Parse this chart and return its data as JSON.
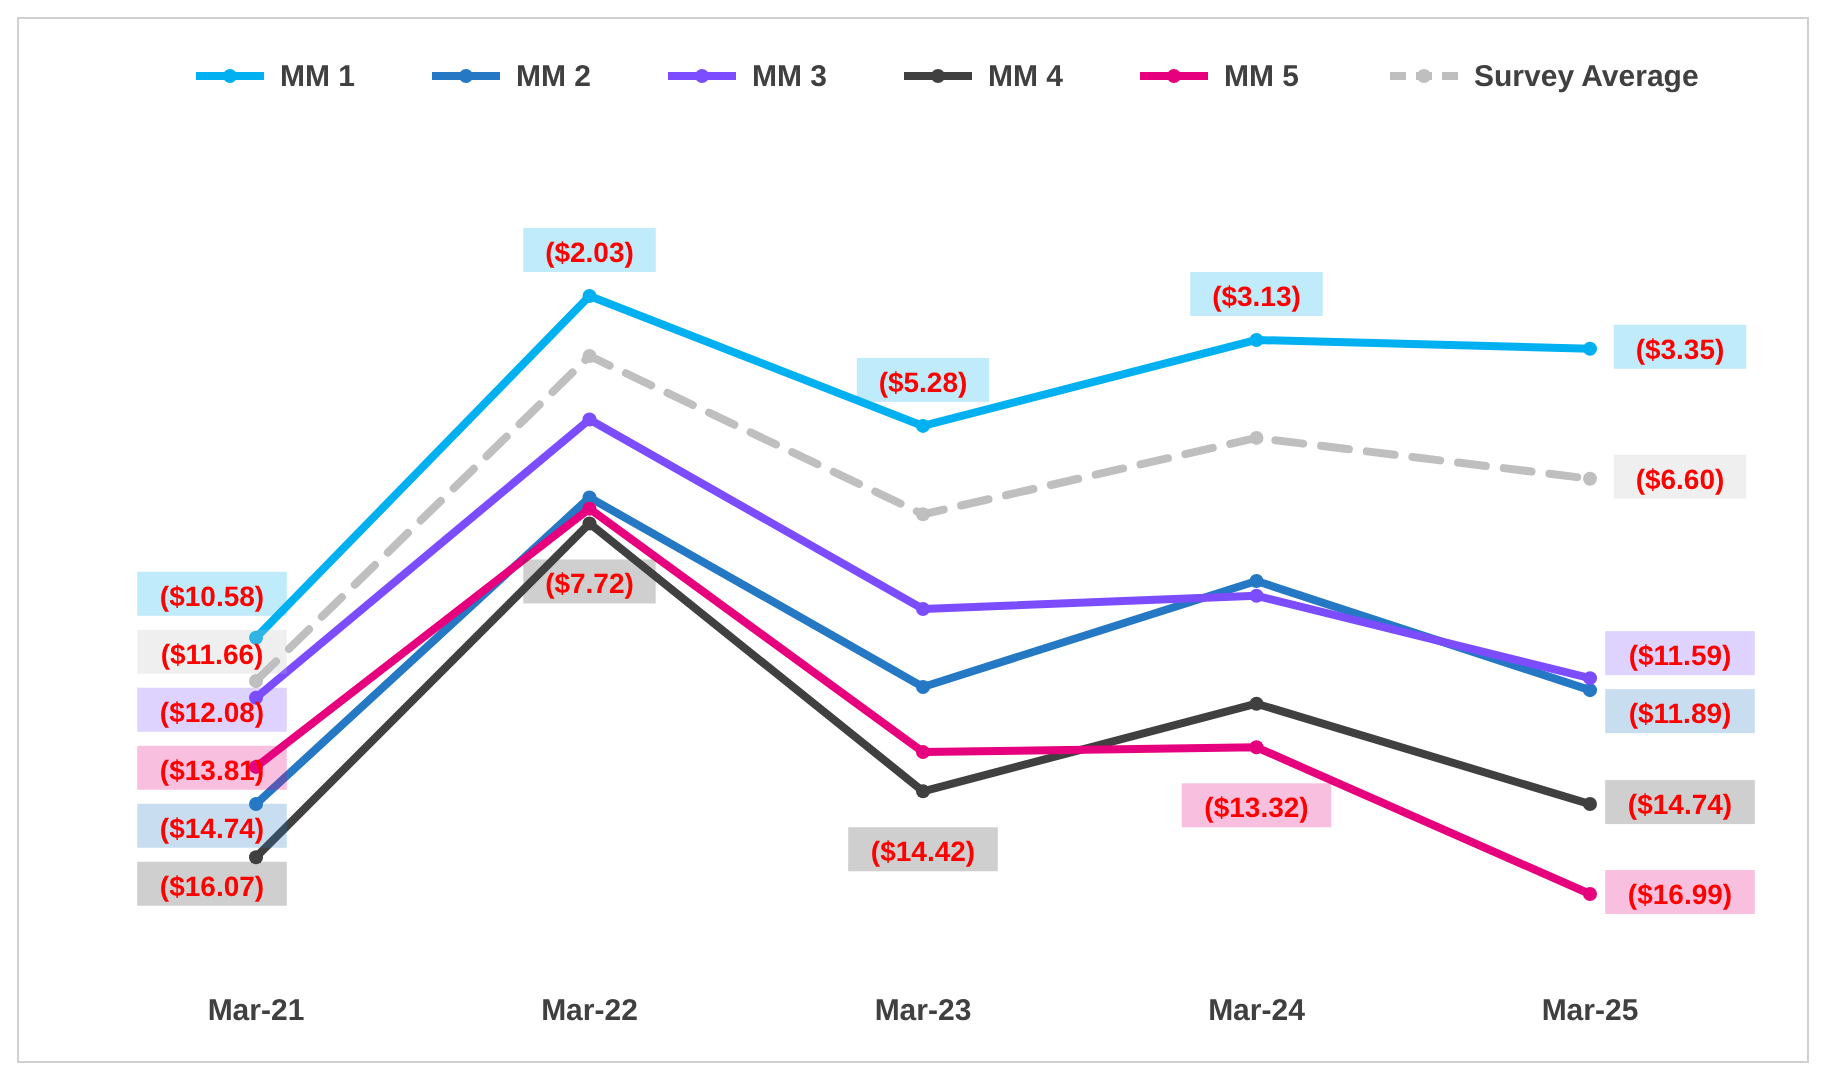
{
  "chart_data": {
    "type": "line",
    "categories": [
      "Mar-21",
      "Mar-22",
      "Mar-23",
      "Mar-24",
      "Mar-25"
    ],
    "legend": "top",
    "marker": "circle",
    "series": [
      {
        "name": "MM 1",
        "color": "#00b0f0",
        "values": [
          -10.58,
          -2.03,
          -5.28,
          -3.13,
          -3.35
        ],
        "value_labels": [
          "($10.58)",
          "($2.03)",
          "($5.28)",
          "($3.13)",
          "($3.35)"
        ]
      },
      {
        "name": "MM 2",
        "color": "#2478c4",
        "values": [
          -14.74,
          -7.07,
          -11.81,
          -9.16,
          -11.89
        ],
        "value_labels": [
          "($14.74)",
          null,
          null,
          null,
          "($11.89)"
        ]
      },
      {
        "name": "MM 3",
        "color": "#7c4dff",
        "values": [
          -12.08,
          -5.12,
          -9.86,
          -9.53,
          -11.59
        ],
        "value_labels": [
          "($12.08)",
          null,
          null,
          null,
          "($11.59)"
        ]
      },
      {
        "name": "MM 4",
        "color": "#404040",
        "values": [
          -16.07,
          -7.72,
          -14.42,
          -12.23,
          -14.74
        ],
        "value_labels": [
          "($16.07)",
          "($7.72)",
          "($14.42)",
          null,
          "($14.74)"
        ]
      },
      {
        "name": "MM 5",
        "color": "#e6007e",
        "values": [
          -13.81,
          -7.35,
          -13.44,
          -13.32,
          -16.99
        ],
        "value_labels": [
          "($13.81)",
          null,
          null,
          "($13.32)",
          "($16.99)"
        ]
      },
      {
        "name": "Survey Average",
        "color": "#bfbfbf",
        "line_style": "dashed",
        "values": [
          -11.66,
          -3.53,
          -7.49,
          -5.58,
          -6.6
        ],
        "value_labels": [
          "($11.66)",
          null,
          null,
          null,
          "($6.60)"
        ]
      }
    ]
  }
}
